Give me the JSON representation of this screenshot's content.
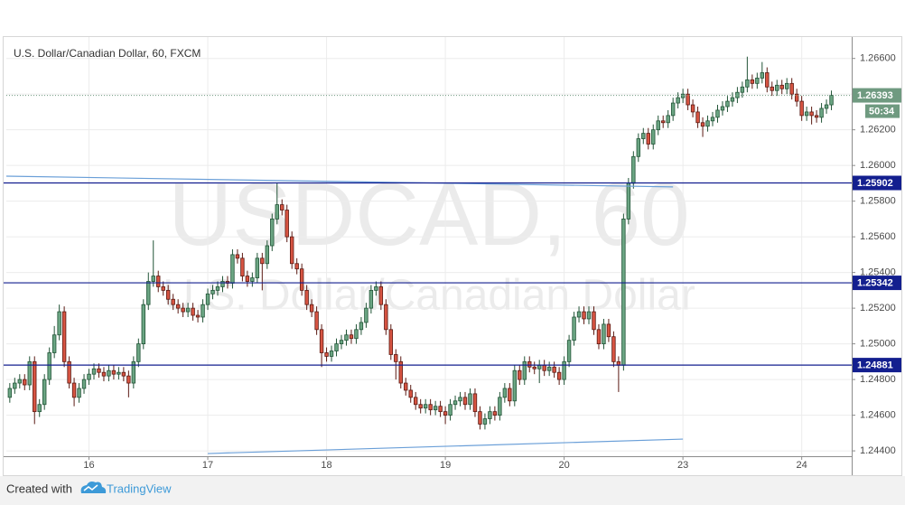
{
  "chart_data": {
    "type": "candlestick",
    "title": "U.S. Dollar/Canadian Dollar, 60, FXCM",
    "watermark": "USDCAD, 60",
    "watermark_subtitle": "U.S. Dollar/Canadian Dollar",
    "up_color": "#6ba583",
    "down_color": "#d75442",
    "open": [
      1.247,
      1.2475,
      1.2478,
      1.248,
      1.2477,
      1.249,
      1.2462,
      1.2466,
      1.248,
      1.2495,
      1.2505,
      1.2518,
      1.249,
      1.2478,
      1.247,
      1.2475,
      1.248,
      1.2483,
      1.2486,
      1.2484,
      1.2482,
      1.2485,
      1.2483,
      1.2484,
      1.2482,
      1.2478,
      1.249,
      1.25,
      1.2522,
      1.2535,
      1.2538,
      1.2532,
      1.253,
      1.2525,
      1.2522,
      1.252,
      1.2518,
      1.252,
      1.2516,
      1.2515,
      1.2522,
      1.2528,
      1.253,
      1.2532,
      1.2535,
      1.2534,
      1.255,
      1.2548,
      1.2538,
      1.2535,
      1.2537,
      1.2548,
      1.2545,
      1.2555,
      1.257,
      1.2578,
      1.2575,
      1.256,
      1.2545,
      1.2542,
      1.253,
      1.2522,
      1.2518,
      1.2508,
      1.2495,
      1.2493,
      1.2496,
      1.25,
      1.2502,
      1.2505,
      1.2503,
      1.2508,
      1.2512,
      1.252,
      1.253,
      1.2532,
      1.2522,
      1.2508,
      1.2494,
      1.249,
      1.2478,
      1.2474,
      1.247,
      1.2466,
      1.2464,
      1.2466,
      1.2463,
      1.2465,
      1.2462,
      1.246,
      1.2466,
      1.2468,
      1.247,
      1.2466,
      1.2472,
      1.2462,
      1.2455,
      1.2458,
      1.2462,
      1.246,
      1.247,
      1.2475,
      1.2468,
      1.2485,
      1.248,
      1.249,
      1.2487,
      1.2486,
      1.2488,
      1.2485,
      1.2487,
      1.2484,
      1.248,
      1.249,
      1.2502,
      1.2515,
      1.2518,
      1.2514,
      1.2518,
      1.2508,
      1.25,
      1.2511,
      1.2504,
      1.249,
      1.2488,
      1.257,
      1.259,
      1.2605,
      1.2615,
      1.2618,
      1.2612,
      1.262,
      1.2625,
      1.2624,
      1.2628,
      1.2635,
      1.2638,
      1.264,
      1.2634,
      1.263,
      1.2624,
      1.2622,
      1.2625,
      1.2627,
      1.2631,
      1.2633,
      1.2636,
      1.2638,
      1.2641,
      1.2644,
      1.2648,
      1.2646,
      1.2649,
      1.2652,
      1.2644,
      1.2642,
      1.2645,
      1.2643,
      1.2646,
      1.264,
      1.2636,
      1.2628,
      1.263,
      1.2628,
      1.2627,
      1.2632,
      1.2634
    ],
    "high": [
      1.2478,
      1.2481,
      1.2483,
      1.2483,
      1.2493,
      1.2493,
      1.2469,
      1.2483,
      1.2498,
      1.251,
      1.2522,
      1.2521,
      1.2493,
      1.2481,
      1.2478,
      1.2483,
      1.2486,
      1.2489,
      1.2489,
      1.2487,
      1.2488,
      1.2488,
      1.2487,
      1.2487,
      1.2485,
      1.2493,
      1.2503,
      1.2525,
      1.254,
      1.2558,
      1.2541,
      1.2535,
      1.2533,
      1.2528,
      1.2525,
      1.2523,
      1.2523,
      1.2523,
      1.2519,
      1.2525,
      1.2531,
      1.2533,
      1.2535,
      1.2538,
      1.2538,
      1.2553,
      1.2553,
      1.2551,
      1.2541,
      1.254,
      1.2551,
      1.2551,
      1.2558,
      1.2573,
      1.259,
      1.2581,
      1.2578,
      1.2563,
      1.2548,
      1.2545,
      1.2533,
      1.2525,
      1.2521,
      1.2511,
      1.2498,
      1.2499,
      1.2503,
      1.2505,
      1.2508,
      1.2508,
      1.2511,
      1.2515,
      1.2523,
      1.2533,
      1.2535,
      1.2535,
      1.2525,
      1.2511,
      1.2497,
      1.2493,
      1.2481,
      1.2477,
      1.2473,
      1.2469,
      1.2469,
      1.2469,
      1.2468,
      1.2468,
      1.2465,
      1.2469,
      1.2471,
      1.2473,
      1.2473,
      1.2475,
      1.2475,
      1.2465,
      1.2461,
      1.2465,
      1.2465,
      1.2473,
      1.2478,
      1.2478,
      1.2488,
      1.2488,
      1.2493,
      1.2493,
      1.249,
      1.2491,
      1.2491,
      1.249,
      1.249,
      1.2487,
      1.2493,
      1.2505,
      1.2518,
      1.2521,
      1.2521,
      1.2521,
      1.2521,
      1.2511,
      1.2514,
      1.2514,
      1.2507,
      1.2493,
      1.2573,
      1.2593,
      1.2608,
      1.2618,
      1.2621,
      1.2621,
      1.2623,
      1.2628,
      1.2628,
      1.2631,
      1.2638,
      1.2641,
      1.2643,
      1.2643,
      1.2637,
      1.2633,
      1.2627,
      1.2628,
      1.263,
      1.2634,
      1.2636,
      1.2639,
      1.2641,
      1.2644,
      1.2647,
      1.2661,
      1.2651,
      1.2652,
      1.2658,
      1.2655,
      1.2647,
      1.2648,
      1.2648,
      1.2649,
      1.2649,
      1.2643,
      1.2639,
      1.2633,
      1.2633,
      1.2631,
      1.2635,
      1.2637,
      1.2642
    ],
    "low": [
      1.2467,
      1.2472,
      1.2475,
      1.2474,
      1.2474,
      1.2455,
      1.2459,
      1.2463,
      1.2477,
      1.2492,
      1.2502,
      1.2487,
      1.2475,
      1.2465,
      1.2467,
      1.2472,
      1.2477,
      1.248,
      1.2481,
      1.2479,
      1.2479,
      1.248,
      1.248,
      1.2479,
      1.247,
      1.2475,
      1.2487,
      1.2497,
      1.2519,
      1.2532,
      1.2529,
      1.2527,
      1.2522,
      1.2519,
      1.2517,
      1.2515,
      1.2515,
      1.2513,
      1.2512,
      1.2512,
      1.2519,
      1.2525,
      1.2527,
      1.2529,
      1.2531,
      1.2531,
      1.2545,
      1.2535,
      1.2532,
      1.2532,
      1.2534,
      1.253,
      1.2542,
      1.2552,
      1.2567,
      1.2572,
      1.2557,
      1.2542,
      1.2539,
      1.2527,
      1.2519,
      1.2515,
      1.2505,
      1.2487,
      1.249,
      1.249,
      1.2493,
      1.2497,
      1.2499,
      1.25,
      1.25,
      1.2505,
      1.2509,
      1.2517,
      1.2527,
      1.2519,
      1.2505,
      1.2491,
      1.248,
      1.2475,
      1.2471,
      1.2467,
      1.2463,
      1.2461,
      1.2461,
      1.246,
      1.246,
      1.2459,
      1.2455,
      1.2457,
      1.2463,
      1.2465,
      1.2463,
      1.2463,
      1.2459,
      1.2452,
      1.2452,
      1.2455,
      1.2457,
      1.2457,
      1.2467,
      1.2465,
      1.2465,
      1.2477,
      1.2477,
      1.2484,
      1.2483,
      1.2478,
      1.2482,
      1.2482,
      1.2481,
      1.2477,
      1.2477,
      1.2487,
      1.2499,
      1.2512,
      1.2511,
      1.2511,
      1.2505,
      1.2497,
      1.2497,
      1.2501,
      1.2487,
      1.2473,
      1.2485,
      1.2567,
      1.2587,
      1.2602,
      1.2612,
      1.2609,
      1.2609,
      1.2617,
      1.2621,
      1.2621,
      1.2625,
      1.2632,
      1.2635,
      1.2631,
      1.2627,
      1.2621,
      1.2616,
      1.2619,
      1.2622,
      1.2624,
      1.2628,
      1.263,
      1.2633,
      1.2635,
      1.2638,
      1.2641,
      1.2643,
      1.2643,
      1.2646,
      1.2641,
      1.2639,
      1.2639,
      1.264,
      1.264,
      1.2637,
      1.2633,
      1.2625,
      1.2625,
      1.2623,
      1.2624,
      1.2624,
      1.2629,
      1.2631
    ],
    "close": [
      1.2475,
      1.2478,
      1.248,
      1.2477,
      1.249,
      1.2462,
      1.2466,
      1.248,
      1.2495,
      1.2505,
      1.2518,
      1.249,
      1.2478,
      1.247,
      1.2475,
      1.248,
      1.2483,
      1.2486,
      1.2484,
      1.2482,
      1.2485,
      1.2483,
      1.2484,
      1.2482,
      1.2478,
      1.249,
      1.25,
      1.2522,
      1.2535,
      1.2538,
      1.2532,
      1.253,
      1.2525,
      1.2522,
      1.252,
      1.2518,
      1.252,
      1.2516,
      1.2515,
      1.2522,
      1.2528,
      1.253,
      1.2532,
      1.2535,
      1.2534,
      1.255,
      1.2548,
      1.2538,
      1.2535,
      1.2537,
      1.2548,
      1.2545,
      1.2555,
      1.257,
      1.2578,
      1.2575,
      1.256,
      1.2545,
      1.2542,
      1.253,
      1.2522,
      1.2518,
      1.2508,
      1.2495,
      1.2493,
      1.2496,
      1.25,
      1.2502,
      1.2505,
      1.2503,
      1.2508,
      1.2512,
      1.252,
      1.253,
      1.2532,
      1.2522,
      1.2508,
      1.2494,
      1.249,
      1.2478,
      1.2474,
      1.247,
      1.2466,
      1.2464,
      1.2466,
      1.2463,
      1.2465,
      1.2462,
      1.246,
      1.2466,
      1.2468,
      1.247,
      1.2466,
      1.2472,
      1.2462,
      1.2455,
      1.2458,
      1.2462,
      1.246,
      1.247,
      1.2475,
      1.2468,
      1.2485,
      1.248,
      1.249,
      1.2487,
      1.2486,
      1.2488,
      1.2485,
      1.2487,
      1.2484,
      1.248,
      1.249,
      1.2502,
      1.2515,
      1.2518,
      1.2514,
      1.2518,
      1.2508,
      1.25,
      1.2511,
      1.2504,
      1.249,
      1.2488,
      1.257,
      1.259,
      1.2605,
      1.2615,
      1.2618,
      1.2612,
      1.262,
      1.2625,
      1.2624,
      1.2628,
      1.2635,
      1.2638,
      1.264,
      1.2634,
      1.263,
      1.2624,
      1.2622,
      1.2625,
      1.2627,
      1.2631,
      1.2633,
      1.2636,
      1.2638,
      1.2641,
      1.2644,
      1.2648,
      1.2646,
      1.2649,
      1.2652,
      1.2644,
      1.2642,
      1.2645,
      1.2643,
      1.2646,
      1.264,
      1.2636,
      1.2628,
      1.263,
      1.2628,
      1.2627,
      1.2632,
      1.2634,
      1.26393
    ],
    "countdown": "50:34",
    "levels": [
      1.25902,
      1.25342,
      1.24881
    ],
    "level_color": "#131f8f",
    "trendlines": [
      {
        "x": [
          -0.7,
          134
        ],
        "y": [
          1.2594,
          1.2588
        ]
      },
      {
        "x": [
          40,
          136
        ],
        "y": [
          1.24385,
          1.24466
        ]
      }
    ],
    "trendline_color": "#6a9fd8",
    "xlim": [
      -0.7,
      170.1
    ],
    "xticks": [
      {
        "value": 16,
        "label": "16"
      },
      {
        "value": 40,
        "label": "17"
      },
      {
        "value": 64,
        "label": "18"
      },
      {
        "value": 88,
        "label": "19"
      },
      {
        "value": 112,
        "label": "20"
      },
      {
        "value": 136,
        "label": "23"
      },
      {
        "value": 160,
        "label": "24"
      }
    ],
    "ylim": [
      1.2437,
      1.2672
    ],
    "yticks": [
      {
        "value": 1.244,
        "label": "1.24400"
      },
      {
        "value": 1.246,
        "label": "1.24600"
      },
      {
        "value": 1.248,
        "label": "1.24800"
      },
      {
        "value": 1.25,
        "label": "1.25000"
      },
      {
        "value": 1.252,
        "label": "1.25200"
      },
      {
        "value": 1.254,
        "label": "1.25400"
      },
      {
        "value": 1.256,
        "label": "1.25600"
      },
      {
        "value": 1.258,
        "label": "1.25800"
      },
      {
        "value": 1.26,
        "label": "1.26000"
      },
      {
        "value": 1.262,
        "label": "1.26200"
      },
      {
        "value": 1.264,
        "label": "1.26400"
      },
      {
        "value": 1.266,
        "label": "1.26600"
      }
    ],
    "grid": true
  },
  "footer": {
    "text": "Created with",
    "brand": "TradingView"
  }
}
